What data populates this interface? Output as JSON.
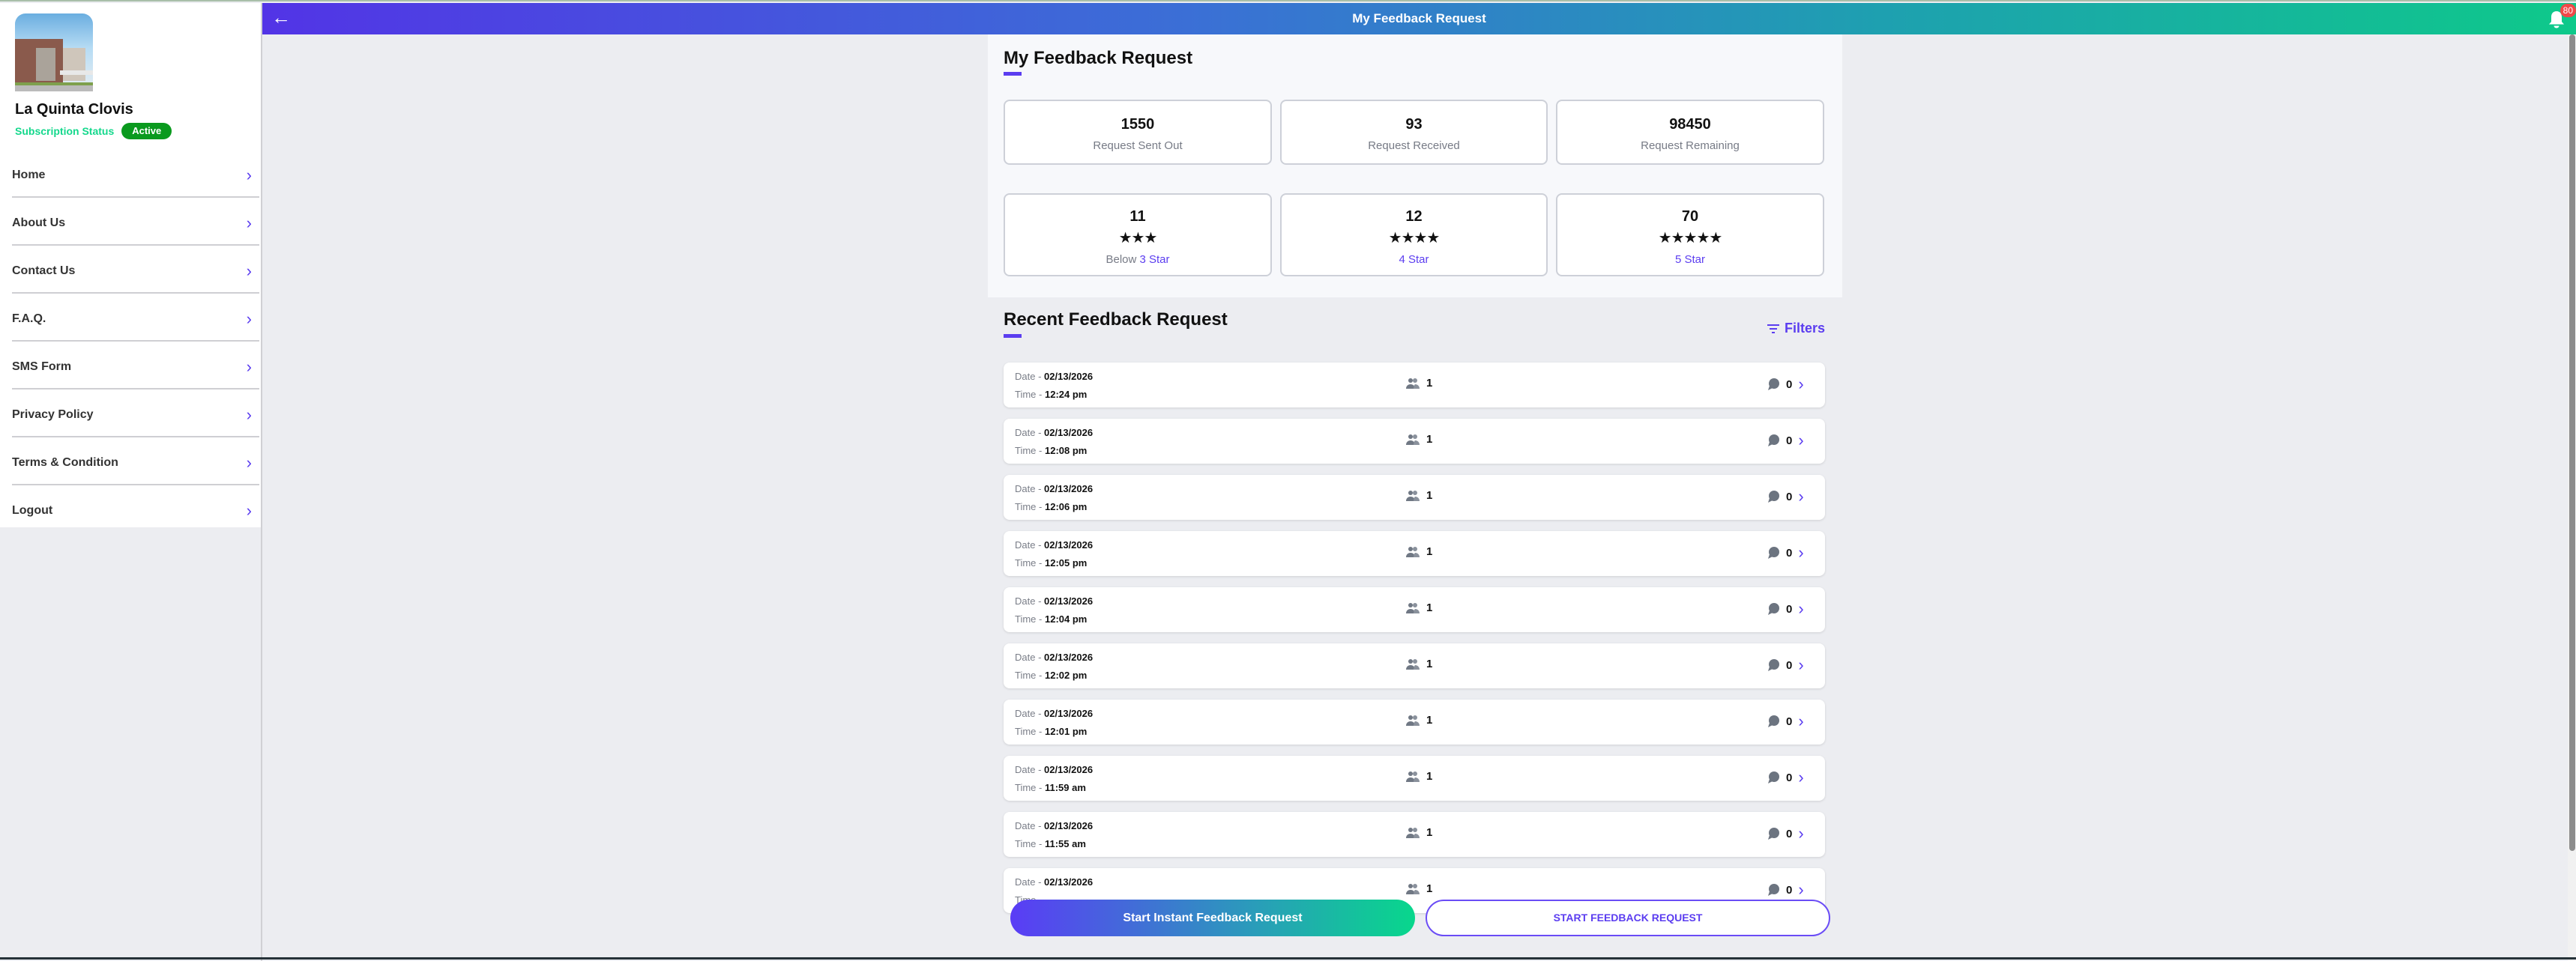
{
  "sidebar": {
    "business_name": "La Quinta Clovis",
    "subscription_label": "Subscription Status",
    "subscription_status": "Active",
    "items": [
      {
        "label": "Home"
      },
      {
        "label": "About Us"
      },
      {
        "label": "Contact Us"
      },
      {
        "label": "F.A.Q."
      },
      {
        "label": "SMS Form"
      },
      {
        "label": "Privacy Policy"
      },
      {
        "label": "Terms & Condition"
      },
      {
        "label": "Logout"
      }
    ]
  },
  "header": {
    "title": "My Feedback Request",
    "notification_count": "80",
    "back_icon": "arrow-left-icon",
    "bell_icon": "bell-icon"
  },
  "summary": {
    "title": "My Feedback Request",
    "stats": [
      {
        "value": "1550",
        "label": "Request Sent Out"
      },
      {
        "value": "93",
        "label": "Request Received"
      },
      {
        "value": "98450",
        "label": "Request Remaining"
      }
    ],
    "ratings": [
      {
        "value": "11",
        "stars": "★★★",
        "prefix": "Below",
        "label": "3 Star"
      },
      {
        "value": "12",
        "stars": "★★★★",
        "prefix": "",
        "label": "4 Star"
      },
      {
        "value": "70",
        "stars": "★★★★★",
        "prefix": "",
        "label": "5 Star"
      }
    ]
  },
  "recent": {
    "title": "Recent Feedback Request",
    "filters_label": "Filters",
    "date_label": "Date -",
    "time_label": "Time -",
    "rows": [
      {
        "date": "02/13/2026",
        "time": "12:24 pm",
        "recipients": "1",
        "responses": "0"
      },
      {
        "date": "02/13/2026",
        "time": "12:08 pm",
        "recipients": "1",
        "responses": "0"
      },
      {
        "date": "02/13/2026",
        "time": "12:06 pm",
        "recipients": "1",
        "responses": "0"
      },
      {
        "date": "02/13/2026",
        "time": "12:05 pm",
        "recipients": "1",
        "responses": "0"
      },
      {
        "date": "02/13/2026",
        "time": "12:04 pm",
        "recipients": "1",
        "responses": "0"
      },
      {
        "date": "02/13/2026",
        "time": "12:02 pm",
        "recipients": "1",
        "responses": "0"
      },
      {
        "date": "02/13/2026",
        "time": "12:01 pm",
        "recipients": "1",
        "responses": "0"
      },
      {
        "date": "02/13/2026",
        "time": "11:59 am",
        "recipients": "1",
        "responses": "0"
      },
      {
        "date": "02/13/2026",
        "time": "11:55 am",
        "recipients": "1",
        "responses": "0"
      },
      {
        "date": "02/13/2026",
        "time": "",
        "recipients": "1",
        "responses": "0"
      }
    ]
  },
  "actions": {
    "instant_label": "Start Instant Feedback Request",
    "start_label": "START FEEDBACK REQUEST"
  },
  "colors": {
    "accent": "#5b3df0",
    "green": "#0ec98a",
    "active_badge": "#0a9a1e",
    "notification": "#f04848"
  }
}
